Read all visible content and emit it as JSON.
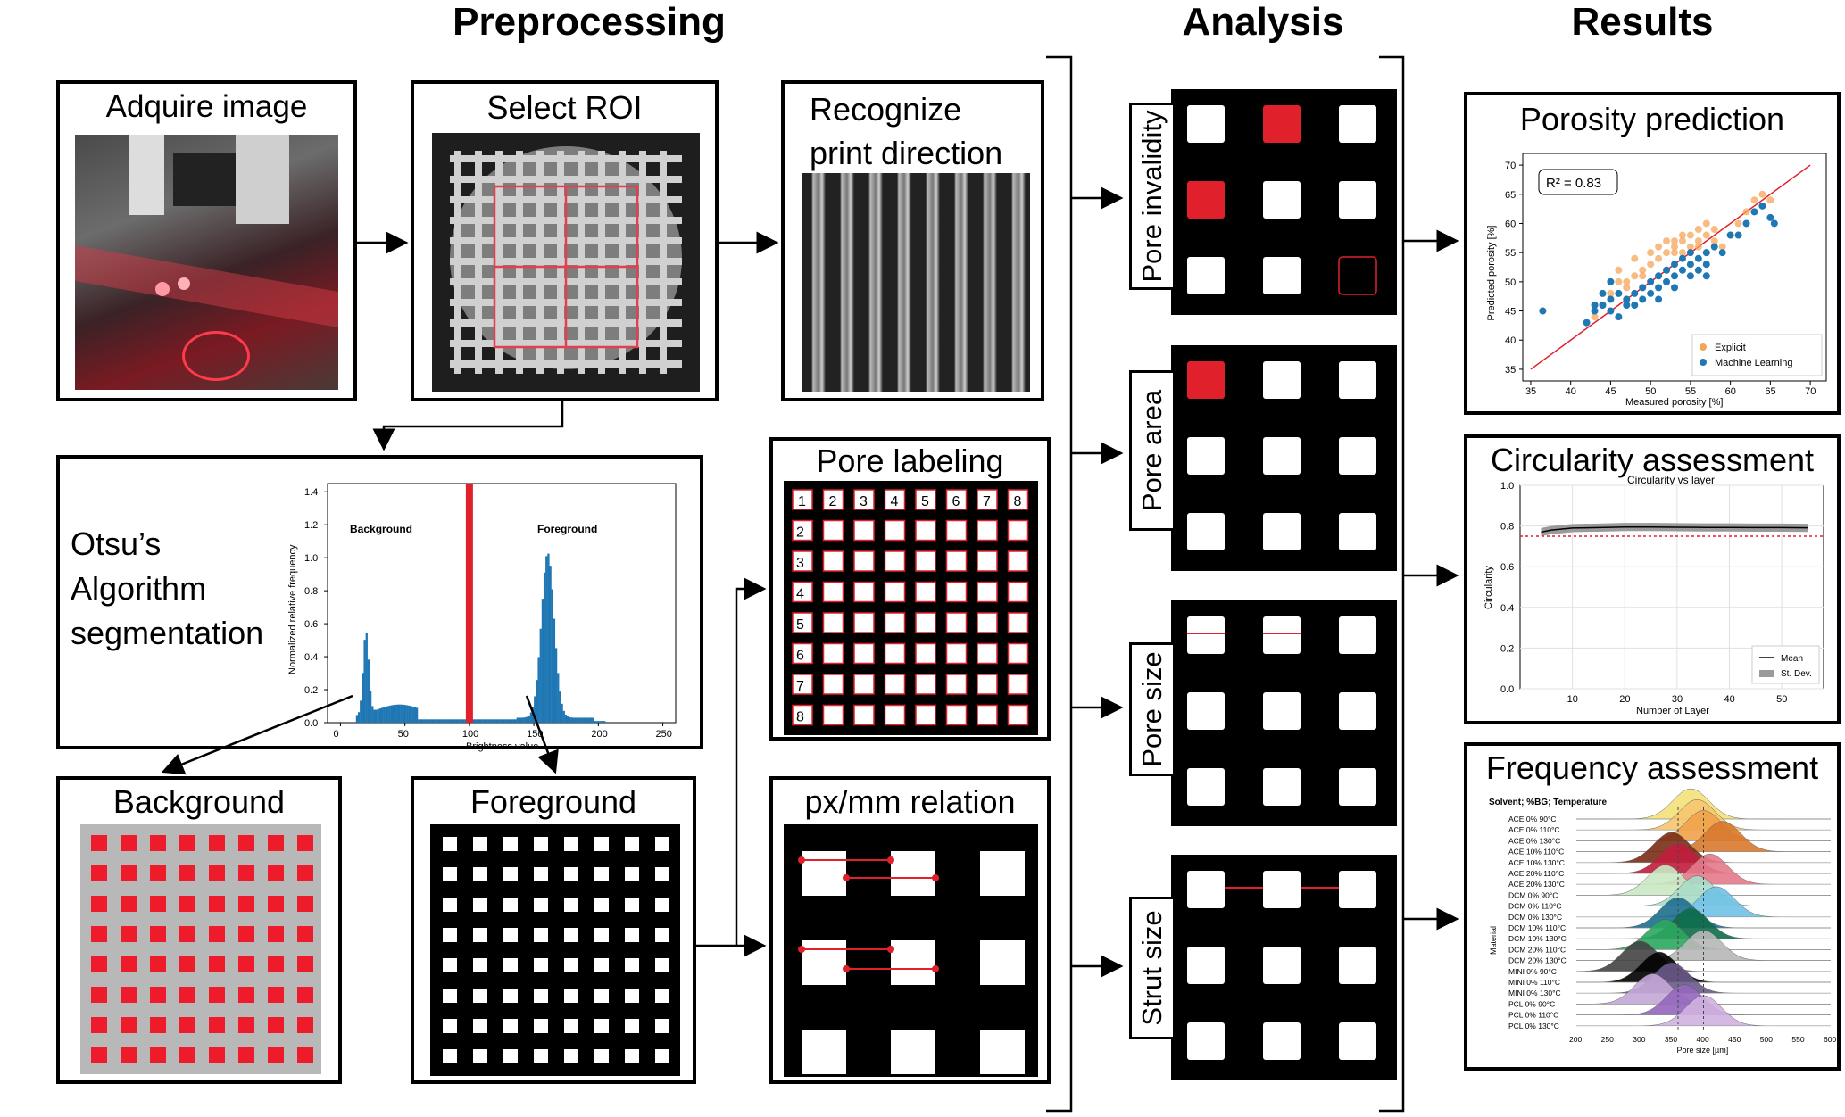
{
  "headers": {
    "preprocessing": "Preprocessing",
    "analysis": "Analysis",
    "results": "Results"
  },
  "preprocessing": {
    "acquire": "Adquire image",
    "roi": "Select ROI",
    "print_direction_1": "Recognize",
    "print_direction_2": "print direction",
    "otsu_1": "Otsu’s",
    "otsu_2": "Algorithm",
    "otsu_3": "segmentation",
    "background": "Background",
    "foreground": "Foreground",
    "pore_labeling": "Pore labeling",
    "pxmm": "px/mm relation",
    "pore_label_numbers": [
      "1",
      "2",
      "3",
      "4",
      "5",
      "6",
      "7",
      "8"
    ]
  },
  "otsu_chart": {
    "ylabel": "Normalized relative frequency",
    "xlabel": "Brightness value",
    "yticks": [
      "0.0",
      "0.2",
      "0.4",
      "0.6",
      "0.8",
      "1.0",
      "1.2",
      "1.4"
    ],
    "xticks": [
      "0",
      "50",
      "100",
      "150",
      "200",
      "250"
    ],
    "background_label": "Background",
    "foreground_label": "Foreground"
  },
  "analysis": {
    "pore_invalidity": "Pore invalidity",
    "pore_area": "Pore area",
    "pore_size": "Pore size",
    "strut_size": "Strut size"
  },
  "results": {
    "porosity": "Porosity prediction",
    "circularity": "Circularity assessment",
    "frequency": "Frequency assessment"
  },
  "chart_data": [
    {
      "type": "scatter",
      "title": "",
      "xlabel": "Measured porosity [%]",
      "ylabel": "Predicted porosity [%]",
      "xlim": [
        34,
        72
      ],
      "ylim": [
        33,
        72
      ],
      "xticks": [
        "35",
        "40",
        "45",
        "50",
        "55",
        "60",
        "65",
        "70"
      ],
      "yticks": [
        "35",
        "40",
        "45",
        "50",
        "55",
        "60",
        "65",
        "70"
      ],
      "annotation": "R² = 0.83",
      "legend_position": "bottom-right",
      "series": [
        {
          "name": "Explicit",
          "color": "#f5a55a",
          "points": [
            [
              36.5,
              45
            ],
            [
              43,
              44
            ],
            [
              44,
              46
            ],
            [
              45,
              48
            ],
            [
              46,
              50
            ],
            [
              47,
              49
            ],
            [
              48,
              51
            ],
            [
              49,
              52
            ],
            [
              50,
              53
            ],
            [
              51,
              54
            ],
            [
              52,
              55
            ],
            [
              53,
              56
            ],
            [
              54,
              57
            ],
            [
              55,
              58
            ],
            [
              56,
              59
            ],
            [
              57,
              60
            ],
            [
              51,
              56
            ],
            [
              53,
              57
            ],
            [
              54,
              55
            ],
            [
              55,
              56
            ],
            [
              56,
              57
            ],
            [
              57,
              58
            ],
            [
              58,
              57
            ],
            [
              59,
              56
            ],
            [
              60,
              58
            ],
            [
              61,
              60
            ],
            [
              62,
              62
            ],
            [
              63,
              64
            ],
            [
              64,
              65
            ],
            [
              65,
              64
            ],
            [
              46,
              52
            ],
            [
              48,
              54
            ],
            [
              50,
              55
            ],
            [
              52,
              57
            ],
            [
              54,
              58
            ],
            [
              56,
              56
            ],
            [
              58,
              59
            ],
            [
              47,
              50
            ],
            [
              49,
              51
            ],
            [
              53,
              55
            ],
            [
              55,
              55
            ],
            [
              57,
              55
            ]
          ]
        },
        {
          "name": "Machine Learning",
          "color": "#1f77b4",
          "points": [
            [
              36.5,
              45
            ],
            [
              42,
              43
            ],
            [
              43,
              45
            ],
            [
              44,
              46
            ],
            [
              45,
              45
            ],
            [
              45,
              47
            ],
            [
              46,
              48
            ],
            [
              46,
              44
            ],
            [
              47,
              47
            ],
            [
              48,
              48
            ],
            [
              48,
              46
            ],
            [
              49,
              49
            ],
            [
              50,
              48
            ],
            [
              50,
              50
            ],
            [
              51,
              49
            ],
            [
              51,
              51
            ],
            [
              52,
              52
            ],
            [
              52,
              50
            ],
            [
              53,
              51
            ],
            [
              53,
              53
            ],
            [
              54,
              52
            ],
            [
              54,
              54
            ],
            [
              55,
              53
            ],
            [
              55,
              55
            ],
            [
              56,
              54
            ],
            [
              56,
              52
            ],
            [
              57,
              53
            ],
            [
              57,
              55
            ],
            [
              58,
              56
            ],
            [
              59,
              55
            ],
            [
              60,
              58
            ],
            [
              61,
              58
            ],
            [
              62,
              60
            ],
            [
              63,
              62
            ],
            [
              64,
              63
            ],
            [
              65,
              61
            ],
            [
              65.5,
              60
            ],
            [
              43,
              46
            ],
            [
              44,
              48
            ],
            [
              45,
              50
            ],
            [
              47,
              46
            ],
            [
              49,
              47
            ],
            [
              51,
              47
            ],
            [
              53,
              49
            ],
            [
              55,
              51
            ],
            [
              57,
              51
            ]
          ]
        }
      ],
      "fit_line": [
        [
          35,
          35
        ],
        [
          70,
          70
        ]
      ]
    },
    {
      "type": "line",
      "title": "Circularity vs layer",
      "xlabel": "Number of Layer",
      "ylabel": "Circularity",
      "xlim": [
        0,
        58
      ],
      "ylim": [
        0.0,
        1.0
      ],
      "xticks": [
        "10",
        "20",
        "30",
        "40",
        "50"
      ],
      "yticks": [
        "0.0",
        "0.2",
        "0.4",
        "0.6",
        "0.8",
        "1.0"
      ],
      "grid": true,
      "legend_position": "bottom-right",
      "series": [
        {
          "name": "Mean",
          "x": [
            4,
            6,
            8,
            10,
            15,
            20,
            25,
            30,
            35,
            40,
            45,
            50,
            55
          ],
          "y": [
            0.77,
            0.78,
            0.785,
            0.79,
            0.792,
            0.795,
            0.795,
            0.794,
            0.793,
            0.793,
            0.792,
            0.792,
            0.791
          ]
        },
        {
          "name": "St. Dev.",
          "x": [
            4,
            55
          ],
          "y": [
            0.02,
            0.02
          ]
        }
      ],
      "threshold": 0.75
    },
    {
      "type": "area",
      "title": "Solvent; %BG; Temperature",
      "xlabel": "Pore size [µm]",
      "ylabel": "Material",
      "xlim": [
        200,
        600
      ],
      "xticks": [
        "200",
        "250",
        "300",
        "350",
        "400",
        "450",
        "500",
        "550",
        "600"
      ],
      "categories": [
        "ACE   0%   90°C",
        "ACE   0% 110°C",
        "ACE   0% 130°C",
        "ACE 10% 110°C",
        "ACE 10% 130°C",
        "ACE 20% 110°C",
        "ACE 20% 130°C",
        "DCM   0%   90°C",
        "DCM   0% 110°C",
        "DCM   0% 130°C",
        "DCM 10% 110°C",
        "DCM 10% 130°C",
        "DCM 20% 110°C",
        "DCM 20% 130°C",
        "MINI   0%   90°C",
        "MINI   0% 110°C",
        "MINI   0% 130°C",
        "PCL   0%   90°C",
        "PCL   0% 110°C",
        "PCL   0% 130°C"
      ],
      "peaks": [
        380,
        390,
        400,
        430,
        350,
        360,
        410,
        340,
        390,
        420,
        360,
        380,
        340,
        400,
        300,
        330,
        350,
        320,
        370,
        400
      ],
      "colors": [
        "#f5e27a",
        "#f6c66f",
        "#f1a34a",
        "#d9792e",
        "#7a2e16",
        "#c21d3c",
        "#e57a8a",
        "#c9e8c3",
        "#a8dcc9",
        "#6fc3e6",
        "#1c6f8f",
        "#0d6e4a",
        "#2ca860",
        "#b8b8b8",
        "#444444",
        "#000000",
        "#6a5a8a",
        "#c4a8d8",
        "#9467bd",
        "#d0b2e0"
      ],
      "vlines": [
        360,
        400
      ]
    }
  ]
}
